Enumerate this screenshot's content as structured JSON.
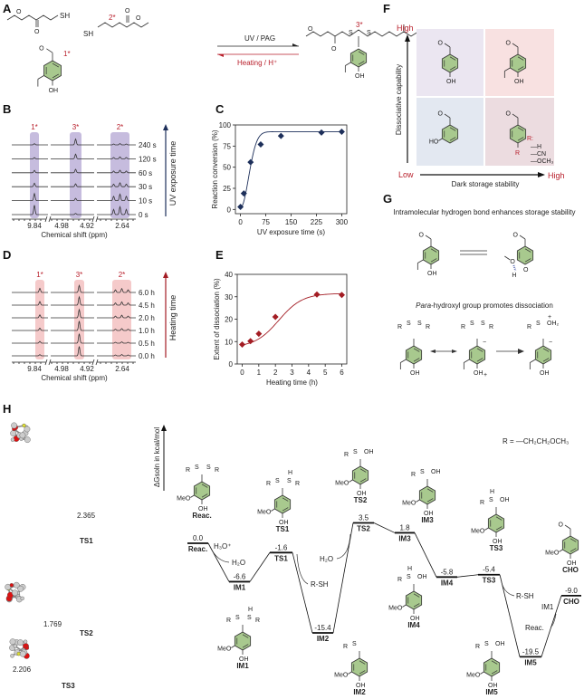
{
  "panels": {
    "A": "A",
    "B": "B",
    "C": "C",
    "D": "D",
    "E": "E",
    "F": "F",
    "G": "G",
    "H": "H"
  },
  "a": {
    "forward": "UV / PAG",
    "reverse": "Heating / H⁺",
    "mark1": "1*",
    "mark2": "2*",
    "mark3": "3*",
    "sh": "SH",
    "o": "O",
    "oh": "OH",
    "s": "S"
  },
  "b": {
    "marks": [
      "1*",
      "3*",
      "2*"
    ],
    "rows": [
      "0 s",
      "10 s",
      "30 s",
      "60 s",
      "120 s",
      "240 s"
    ],
    "ticks": [
      "9.84",
      "4.98",
      "4.92",
      "2.64"
    ],
    "xlabel": "Chemical shift (ppm)",
    "arrow_label": "UV exposure time",
    "highlight_color": "#b3a6d3",
    "peak_heights_au": {
      "1*": [
        8,
        6,
        3,
        2,
        1,
        1
      ],
      "3*": [
        1,
        2,
        2.5,
        3,
        4,
        5
      ],
      "2*": [
        6,
        5,
        3,
        2,
        1.5,
        1
      ]
    }
  },
  "d": {
    "marks": [
      "1*",
      "3*",
      "2*"
    ],
    "rows": [
      "0.0 h",
      "0.5 h",
      "1.0 h",
      "2.0 h",
      "4.5 h",
      "6.0 h"
    ],
    "ticks": [
      "9.84",
      "4.98",
      "4.92",
      "2.64"
    ],
    "xlabel": "Chemical shift (ppm)",
    "arrow_label": "Heating time",
    "highlight_color": "#f2b8b8",
    "peak_heights_au": {
      "1*": [
        1,
        1.5,
        2,
        2.5,
        3,
        3.5
      ],
      "3*": [
        8,
        8,
        8,
        7,
        7,
        6
      ],
      "2*": [
        1,
        1,
        1.5,
        2,
        2.5,
        3
      ]
    }
  },
  "chart_data": [
    {
      "type": "scatter",
      "panel": "C",
      "xlabel": "UV exposure time (s)",
      "ylabel": "Reaction conversion (%)",
      "xlim": [
        -15,
        315
      ],
      "ylim": [
        -5,
        100
      ],
      "xticks": [
        0,
        75,
        150,
        225,
        300
      ],
      "yticks": [
        0,
        25,
        50,
        75,
        100
      ],
      "x": [
        0,
        10,
        30,
        60,
        120,
        240,
        300
      ],
      "y": [
        3,
        19,
        56,
        77,
        87,
        91,
        92
      ],
      "color": "#1d2f5a",
      "marker": "diamond",
      "fit_line": true
    },
    {
      "type": "scatter",
      "panel": "E",
      "xlabel": "Heating time (h)",
      "ylabel": "Extent of dissociation (%)",
      "xlim": [
        -0.3,
        6.3
      ],
      "ylim": [
        0,
        40
      ],
      "xticks": [
        0,
        1,
        2,
        3,
        4,
        5,
        6
      ],
      "yticks": [
        0,
        10,
        20,
        30,
        40
      ],
      "x": [
        0,
        0.5,
        1,
        2,
        4.5,
        6
      ],
      "y": [
        8.7,
        10.2,
        13.5,
        21,
        31,
        30.8
      ],
      "color": "#a31d24",
      "marker": "diamond",
      "fit_line": true
    }
  ],
  "f": {
    "y_high": "High",
    "y_low": "Low",
    "x_high": "High",
    "ylabel": "Dissociative capability",
    "xlabel": "Dark storage stability",
    "r_label": "R:",
    "r_options": [
      "H",
      "CN",
      "OCH₃"
    ],
    "r": "R",
    "oh": "OH",
    "ho": "HO",
    "quadrant_colors": [
      "#ebe6f1",
      "#f8e1e1",
      "#e3e8f1",
      "#ecdce0"
    ]
  },
  "g": {
    "title1": "Intramolecular hydrogen bond enhances storage stability",
    "title2_em": "Para",
    "title2_rest": "-hydroxyl group promotes dissociation",
    "oh": "OH",
    "h": "H",
    "o": "O",
    "s": "S",
    "r": "R",
    "oh2": "OH₂",
    "plus": "+",
    "minus": "−"
  },
  "h": {
    "ylabel": "ΔGsoln in kcal/mol",
    "r_def": "R = —CH₂CH₂OCH₃",
    "structures": [
      {
        "label": "TS1",
        "distance": "2.365"
      },
      {
        "label": "TS2",
        "distance": "1.769"
      },
      {
        "label": "TS3",
        "distance": "2.206"
      }
    ],
    "levels": [
      {
        "name": "Reac.",
        "value": 0.0,
        "value_label": "0.0"
      },
      {
        "name": "IM1",
        "value": -6.6,
        "value_label": "-6.6"
      },
      {
        "name": "TS1",
        "value": -1.6,
        "value_label": "-1.6"
      },
      {
        "name": "IM2",
        "value": -15.4,
        "value_label": "-15.4"
      },
      {
        "name": "TS2",
        "value": 3.5,
        "value_label": "3.5"
      },
      {
        "name": "IM3",
        "value": 1.8,
        "value_label": "1.8"
      },
      {
        "name": "IM4",
        "value": -5.8,
        "value_label": "-5.8"
      },
      {
        "name": "TS3",
        "value": -5.4,
        "value_label": "-5.4"
      },
      {
        "name": "IM5",
        "value": -19.5,
        "value_label": "-19.5"
      },
      {
        "name": "CHO",
        "value": -9.0,
        "value_label": "-9.0"
      }
    ],
    "annotations": {
      "h3o": "H₃O⁺",
      "h2o_out": "H₂O",
      "rsh1": "R-SH",
      "h2o_in": "H₂O",
      "rsh2": "R-SH",
      "im1": "IM1",
      "reac": "Reac."
    },
    "molecules": [
      "Reac.",
      "TS1",
      "TS2",
      "IM3",
      "TS3",
      "CHO",
      "IM1",
      "IM2",
      "IM4",
      "IM5"
    ],
    "meo": "MeO",
    "oh": "OH",
    "r": "R",
    "s": "S",
    "h": "H",
    "ring_color": "#a8c98e"
  }
}
